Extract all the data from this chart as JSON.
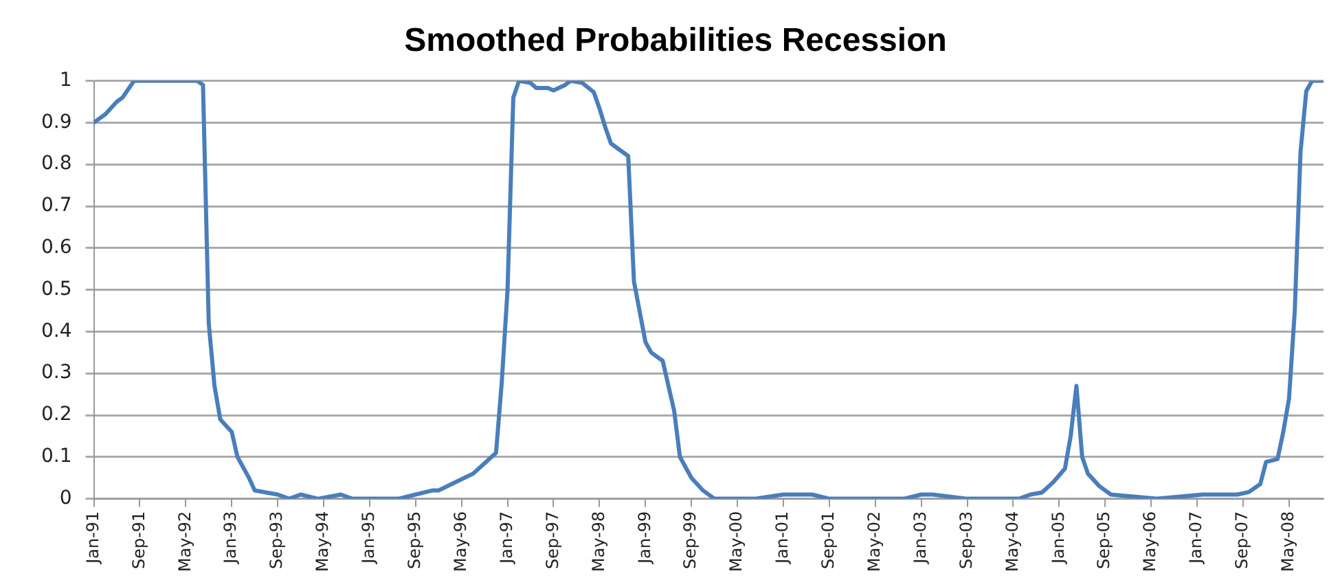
{
  "chart_data": {
    "type": "line",
    "title": "Smoothed Probabilities Recession",
    "x": [
      "1991-01",
      "1991-03",
      "1991-05",
      "1991-06",
      "1991-08",
      "1992-07",
      "1992-08",
      "1992-09",
      "1992-10",
      "1992-11",
      "1992-12",
      "1993-01",
      "1993-02",
      "1993-04",
      "1993-05",
      "1993-09",
      "1993-11",
      "1994-01",
      "1994-04",
      "1994-08",
      "1994-10",
      "1995-06",
      "1995-09",
      "1995-12",
      "1996-01",
      "1996-04",
      "1996-07",
      "1996-09",
      "1996-11",
      "1996-12",
      "1997-01",
      "1997-02",
      "1997-03",
      "1997-05",
      "1997-06",
      "1997-08",
      "1997-09",
      "1997-11",
      "1997-12",
      "1998-02",
      "1998-04",
      "1998-05",
      "1998-06",
      "1998-07",
      "1998-09",
      "1998-10",
      "1998-11",
      "1999-01",
      "1999-02",
      "1999-04",
      "1999-06",
      "1999-07",
      "1999-09",
      "1999-11",
      "2000-01",
      "2000-08",
      "2001-01",
      "2001-06",
      "2001-09",
      "2002-08",
      "2002-10",
      "2003-01",
      "2003-03",
      "2003-09",
      "2004-06",
      "2004-08",
      "2004-10",
      "2004-12",
      "2005-02",
      "2005-03",
      "2005-04",
      "2005-05",
      "2005-06",
      "2005-08",
      "2005-10",
      "2006-06",
      "2007-02",
      "2007-08",
      "2007-10",
      "2007-12",
      "2008-01",
      "2008-03",
      "2008-04",
      "2008-05",
      "2008-06",
      "2008-07",
      "2008-08",
      "2008-09",
      "2008-11"
    ],
    "series": [
      {
        "color": "#4a7ebb",
        "values": [
          0.9,
          0.92,
          0.95,
          0.96,
          1.0,
          1.0,
          0.99,
          0.42,
          0.27,
          0.19,
          0.175,
          0.16,
          0.1,
          0.05,
          0.02,
          0.01,
          0.0,
          0.01,
          0.0,
          0.01,
          0.0,
          0.0,
          0.01,
          0.02,
          0.02,
          0.04,
          0.06,
          0.085,
          0.11,
          0.28,
          0.5,
          0.96,
          1.0,
          0.995,
          0.983,
          0.983,
          0.977,
          0.99,
          1.0,
          0.995,
          0.973,
          0.934,
          0.889,
          0.85,
          0.83,
          0.82,
          0.52,
          0.375,
          0.35,
          0.33,
          0.21,
          0.1,
          0.05,
          0.02,
          0.0,
          0.0,
          0.01,
          0.01,
          0.0,
          0.0,
          0.0,
          0.01,
          0.01,
          0.0,
          0.0,
          0.01,
          0.015,
          0.04,
          0.072,
          0.15,
          0.27,
          0.1,
          0.06,
          0.03,
          0.01,
          0.0,
          0.01,
          0.01,
          0.016,
          0.035,
          0.088,
          0.095,
          0.16,
          0.24,
          0.45,
          0.83,
          0.975,
          1.0,
          1.0
        ]
      }
    ],
    "xlim": [
      "1991-01",
      "2008-11"
    ],
    "xticks": [
      {
        "value": "1991-01",
        "label": "Jan-91"
      },
      {
        "value": "1991-09",
        "label": "Sep-91"
      },
      {
        "value": "1992-05",
        "label": "May-92"
      },
      {
        "value": "1993-01",
        "label": "Jan-93"
      },
      {
        "value": "1993-09",
        "label": "Sep-93"
      },
      {
        "value": "1994-05",
        "label": "May-94"
      },
      {
        "value": "1995-01",
        "label": "Jan-95"
      },
      {
        "value": "1995-09",
        "label": "Sep-95"
      },
      {
        "value": "1996-05",
        "label": "May-96"
      },
      {
        "value": "1997-01",
        "label": "Jan-97"
      },
      {
        "value": "1997-09",
        "label": "Sep-97"
      },
      {
        "value": "1998-05",
        "label": "May-98"
      },
      {
        "value": "1999-01",
        "label": "Jan-99"
      },
      {
        "value": "1999-09",
        "label": "Sep-99"
      },
      {
        "value": "2000-05",
        "label": "May-00"
      },
      {
        "value": "2001-01",
        "label": "Jan-01"
      },
      {
        "value": "2001-09",
        "label": "Sep-01"
      },
      {
        "value": "2002-05",
        "label": "May-02"
      },
      {
        "value": "2003-01",
        "label": "Jan-03"
      },
      {
        "value": "2003-09",
        "label": "Sep-03"
      },
      {
        "value": "2004-05",
        "label": "May-04"
      },
      {
        "value": "2005-01",
        "label": "Jan-05"
      },
      {
        "value": "2005-09",
        "label": "Sep-05"
      },
      {
        "value": "2006-05",
        "label": "May-06"
      },
      {
        "value": "2007-01",
        "label": "Jan-07"
      },
      {
        "value": "2007-09",
        "label": "Sep-07"
      },
      {
        "value": "2008-05",
        "label": "May-08"
      }
    ],
    "ylim": [
      0,
      1
    ],
    "yticks": [
      0,
      0.1,
      0.2,
      0.3,
      0.4,
      0.5,
      0.6,
      0.7,
      0.8,
      0.9,
      1
    ],
    "grid": "y",
    "legend": false,
    "marker": "none",
    "line_style": "solid"
  }
}
